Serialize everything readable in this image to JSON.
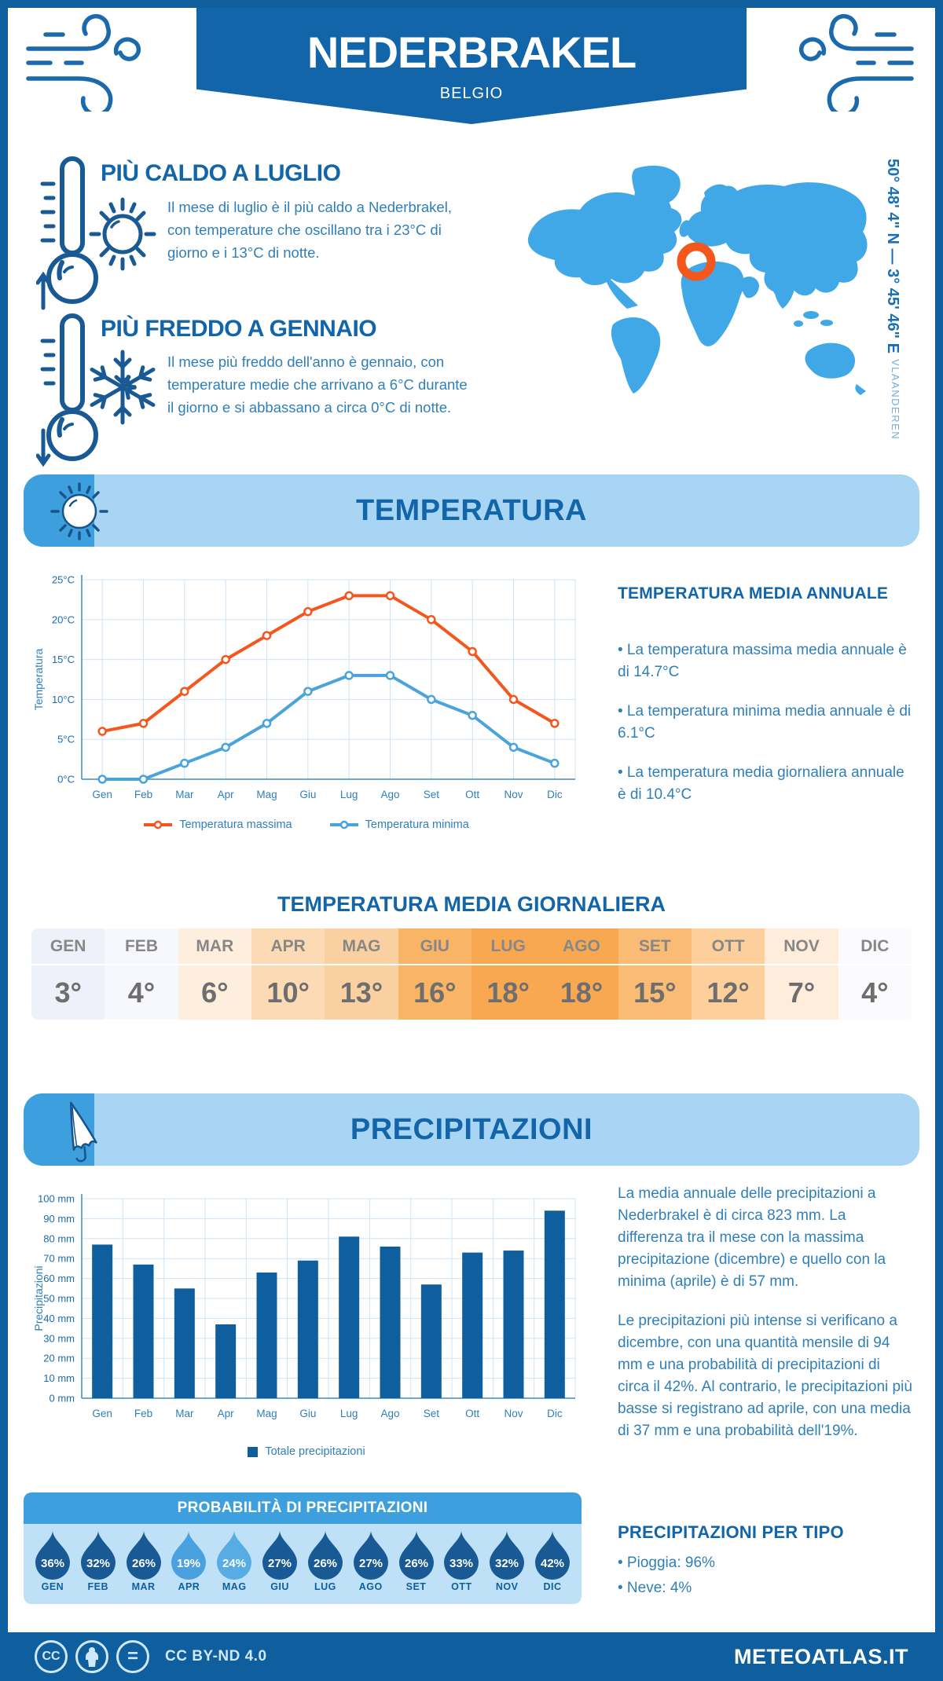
{
  "colors": {
    "brand": "#0f5f9e",
    "heading": "#1265a8",
    "body_text": "#2f7fba",
    "section_banner": "#a9d5f4",
    "section_tab": "#3e9fdf",
    "panel": "#bfe1f8",
    "map": "#41a8e8",
    "marker": "#f4571c",
    "max_line": "#f4571d",
    "min_line": "#4aa3db",
    "bar": "#0f5f9e"
  },
  "header": {
    "title": "NEDERBRAKEL",
    "subtitle": "BELGIO"
  },
  "highlights": [
    {
      "title": "PIÙ CALDO A LUGLIO",
      "text": "Il mese di luglio è il più caldo a Nederbrakel, con temperature che oscillano tra i 23°C di giorno e i 13°C di notte."
    },
    {
      "title": "PIÙ FREDDO A GENNAIO",
      "text": "Il mese più freddo dell'anno è gennaio, con temperature medie che arrivano a 6°C durante il giorno e si abbassano a circa 0°C di notte."
    }
  ],
  "map": {
    "coordinates": "50° 48' 4\" N — 3° 45' 46\" E",
    "region": "VLAANDEREN"
  },
  "sections": {
    "temperature": "TEMPERATURA",
    "precipitation": "PRECIPITAZIONI"
  },
  "chart_data": [
    {
      "type": "line",
      "title": "Temperatura",
      "categories": [
        "Gen",
        "Feb",
        "Mar",
        "Apr",
        "Mag",
        "Giu",
        "Lug",
        "Ago",
        "Set",
        "Ott",
        "Nov",
        "Dic"
      ],
      "ylabel": "Temperatura",
      "ylim": [
        0,
        25
      ],
      "ytick_step": 5,
      "ytick_suffix": "°C",
      "grid": true,
      "legend_position": "bottom",
      "series": [
        {
          "name": "Temperatura massima",
          "color": "#f4571d",
          "values": [
            6,
            7,
            11,
            15,
            18,
            21,
            23,
            23,
            20,
            16,
            10,
            7
          ]
        },
        {
          "name": "Temperatura minima",
          "color": "#4aa3db",
          "values": [
            0,
            0,
            2,
            4,
            7,
            11,
            13,
            13,
            10,
            8,
            4,
            2
          ]
        }
      ]
    },
    {
      "type": "bar",
      "title": "Precipitazioni",
      "categories": [
        "Gen",
        "Feb",
        "Mar",
        "Apr",
        "Mag",
        "Giu",
        "Lug",
        "Ago",
        "Set",
        "Ott",
        "Nov",
        "Dic"
      ],
      "ylabel": "Precipitazioni",
      "ylim": [
        0,
        100
      ],
      "ytick_step": 10,
      "ytick_suffix": " mm",
      "grid": true,
      "legend_position": "bottom",
      "series": [
        {
          "name": "Totale precipitazioni",
          "color": "#0f5f9e",
          "values": [
            77,
            67,
            55,
            37,
            63,
            69,
            81,
            76,
            57,
            73,
            74,
            94
          ]
        }
      ]
    }
  ],
  "temp_annual": {
    "title": "TEMPERATURA MEDIA ANNUALE",
    "bullets": [
      "• La temperatura massima media annuale è di 14.7°C",
      "• La temperatura minima media annuale è di 6.1°C",
      "• La temperatura media giornaliera annuale è di 10.4°C"
    ]
  },
  "daily_table": {
    "title": "TEMPERATURA MEDIA GIORNALIERA",
    "months": [
      "GEN",
      "FEB",
      "MAR",
      "APR",
      "MAG",
      "GIU",
      "LUG",
      "AGO",
      "SET",
      "OTT",
      "NOV",
      "DIC"
    ],
    "values": [
      "3°",
      "4°",
      "6°",
      "10°",
      "13°",
      "16°",
      "18°",
      "18°",
      "15°",
      "12°",
      "7°",
      "4°"
    ],
    "cell_colors": [
      "#eef1fa",
      "#f7f8fd",
      "#fdeedd",
      "#fcdbb4",
      "#fbd0a0",
      "#f9b466",
      "#f8a851",
      "#f8a851",
      "#fabb74",
      "#fccf9b",
      "#feeddb",
      "#fbfbfe"
    ]
  },
  "precip_text": {
    "p1": "La media annuale delle precipitazioni a Nederbrakel è di circa 823 mm. La differenza tra il mese con la massima precipitazione (dicembre) e quello con la minima (aprile) è di 57 mm.",
    "p2": "Le precipitazioni più intense si verificano a dicembre, con una quantità mensile di 94 mm e una probabilità di precipitazioni di circa il 42%. Al contrario, le precipitazioni più basse si registrano ad aprile, con una media di 37 mm e una probabilità dell'19%."
  },
  "precip_prob": {
    "title": "PROBABILITÀ DI PRECIPITAZIONI",
    "months": [
      "GEN",
      "FEB",
      "MAR",
      "APR",
      "MAG",
      "GIU",
      "LUG",
      "AGO",
      "SET",
      "OTT",
      "NOV",
      "DIC"
    ],
    "values": [
      "36%",
      "32%",
      "26%",
      "19%",
      "24%",
      "27%",
      "26%",
      "27%",
      "26%",
      "33%",
      "32%",
      "42%"
    ],
    "drop_colors": [
      "#1a5a94",
      "#1a5a94",
      "#1a5a94",
      "#4ba1e0",
      "#58ace4",
      "#1a5a94",
      "#1a5a94",
      "#1a5a94",
      "#1a5a94",
      "#1a5a94",
      "#1a5a94",
      "#1a5a94"
    ]
  },
  "precip_type": {
    "title": "PRECIPITAZIONI PER TIPO",
    "bullets": [
      "• Pioggia: 96%",
      "• Neve: 4%"
    ]
  },
  "footer": {
    "license": "CC BY-ND 4.0",
    "site": "METEOATLAS.IT"
  }
}
